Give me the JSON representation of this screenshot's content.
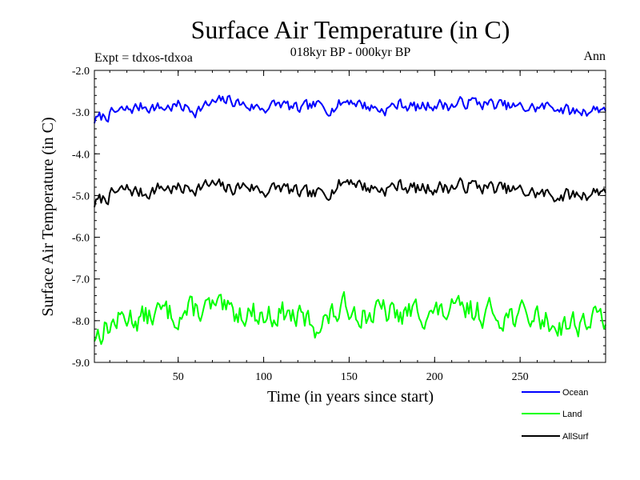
{
  "header": {
    "title": "Surface Air Temperature (in C)",
    "subtitle": "018kyr BP - 000kyr BP",
    "expt_label": "Expt = tdxos-tdxoa",
    "period_label": "Ann"
  },
  "chart_data": {
    "type": "line",
    "title": "Surface Air Temperature (in C)",
    "subtitle": "018kyr BP - 000kyr BP",
    "xlabel": "Time (in years since start)",
    "ylabel": "Surface Air Temperature (in C)",
    "xlim": [
      1,
      300
    ],
    "ylim": [
      -9.0,
      -2.0
    ],
    "x_ticks": [
      50,
      100,
      150,
      200,
      250
    ],
    "x_tick_labels": [
      "50",
      "100",
      "150",
      "200",
      "250"
    ],
    "y_ticks": [
      -9.0,
      -8.0,
      -7.0,
      -6.0,
      -5.0,
      -4.0,
      -3.0,
      -2.0
    ],
    "y_tick_labels": [
      "-9.0",
      "-8.0",
      "-7.0",
      "-6.0",
      "-5.0",
      "-4.0",
      "-3.0",
      "-2.0"
    ],
    "grid": false,
    "legend_position": "bottom-right",
    "x": [
      1,
      10,
      20,
      30,
      40,
      50,
      60,
      70,
      80,
      90,
      100,
      110,
      120,
      130,
      140,
      150,
      160,
      170,
      180,
      190,
      200,
      210,
      220,
      230,
      240,
      250,
      260,
      270,
      280,
      290,
      300
    ],
    "series": [
      {
        "name": "Ocean",
        "color": "#0000ff",
        "values": [
          -3.2,
          -3.05,
          -2.95,
          -2.85,
          -2.9,
          -2.85,
          -2.95,
          -2.8,
          -2.7,
          -2.85,
          -2.9,
          -2.8,
          -2.95,
          -2.85,
          -2.9,
          -2.7,
          -2.85,
          -2.95,
          -2.8,
          -2.9,
          -2.8,
          -2.85,
          -2.75,
          -2.8,
          -2.85,
          -2.9,
          -2.9,
          -2.85,
          -3.0,
          -2.95,
          -2.9
        ]
      },
      {
        "name": "Land",
        "color": "#00ff00",
        "values": [
          -8.35,
          -8.1,
          -7.9,
          -7.95,
          -7.8,
          -7.85,
          -7.75,
          -7.7,
          -7.85,
          -7.75,
          -7.9,
          -7.8,
          -7.95,
          -8.1,
          -7.9,
          -7.65,
          -7.85,
          -7.8,
          -7.9,
          -7.75,
          -7.85,
          -7.8,
          -7.75,
          -7.8,
          -7.85,
          -7.9,
          -7.9,
          -8.1,
          -8.05,
          -8.0,
          -7.9
        ]
      },
      {
        "name": "AllSurf",
        "color": "#000000",
        "values": [
          -5.2,
          -5.0,
          -4.85,
          -4.95,
          -4.8,
          -4.85,
          -4.8,
          -4.75,
          -4.85,
          -4.75,
          -4.9,
          -4.8,
          -4.95,
          -5.0,
          -4.85,
          -4.6,
          -4.8,
          -4.85,
          -4.75,
          -4.85,
          -4.8,
          -4.8,
          -4.75,
          -4.8,
          -4.85,
          -4.9,
          -4.95,
          -5.0,
          -5.0,
          -4.95,
          -4.85
        ]
      }
    ]
  },
  "legend": {
    "items": [
      {
        "label": "Ocean",
        "color": "#0000ff"
      },
      {
        "label": "Land",
        "color": "#00ff00"
      },
      {
        "label": "AllSurf",
        "color": "#000000"
      }
    ]
  }
}
